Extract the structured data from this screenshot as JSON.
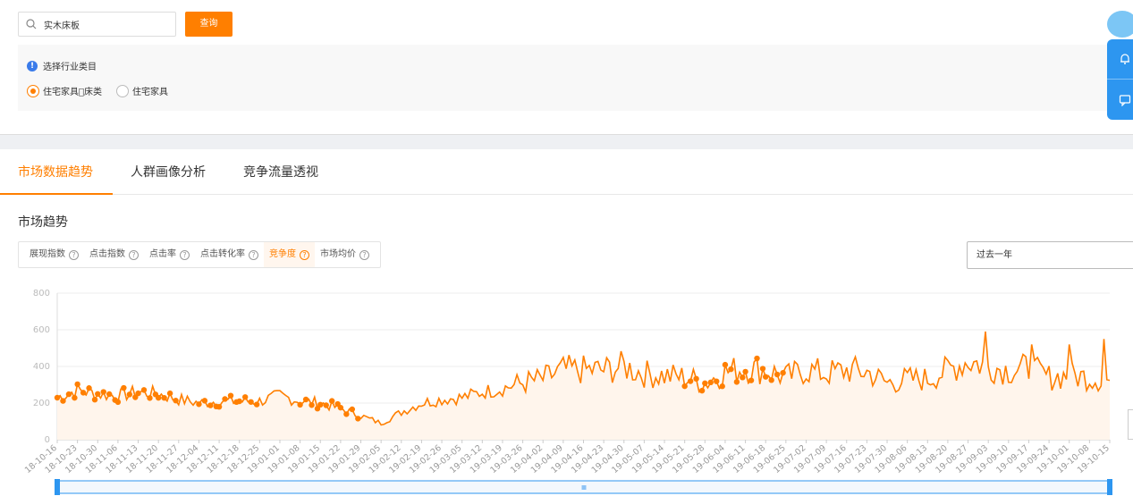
{
  "search": {
    "value": "实木床板",
    "button_label": "查询"
  },
  "industry": {
    "hint": "选择行业类目",
    "options": [
      {
        "label": "住宅家具\u0000床类",
        "selected": true
      },
      {
        "label": "住宅家具",
        "selected": false
      }
    ]
  },
  "tabs": [
    {
      "label": "市场数据趋势",
      "active": true
    },
    {
      "label": "人群画像分析",
      "active": false
    },
    {
      "label": "竞争流量透视",
      "active": false
    }
  ],
  "section_title": "市场趋势",
  "metrics": [
    {
      "label": "展现指数",
      "active": false
    },
    {
      "label": "点击指数",
      "active": false
    },
    {
      "label": "点击率",
      "active": false
    },
    {
      "label": "点击转化率",
      "active": false
    },
    {
      "label": "竞争度",
      "active": true
    },
    {
      "label": "市场均价",
      "active": false
    }
  ],
  "range_select": {
    "value": "过去一年"
  },
  "colors": {
    "accent": "#ff7f00",
    "blue": "#2d96f0"
  },
  "icons": {
    "search": "search-icon",
    "bell": "bell-icon",
    "chat": "chat-icon",
    "info": "info-icon",
    "help": "question-icon"
  },
  "chart_data": {
    "type": "line",
    "ylim": [
      0,
      800
    ],
    "yticks": [
      0,
      200,
      400,
      600,
      800
    ],
    "x_ticks": [
      "18-10-16",
      "18-10-23",
      "18-10-30",
      "18-11-06",
      "18-11-13",
      "18-11-20",
      "18-11-27",
      "18-12-04",
      "18-12-11",
      "18-12-18",
      "18-12-25",
      "19-01-01",
      "19-01-08",
      "19-01-15",
      "19-01-22",
      "19-01-29",
      "19-02-05",
      "19-02-12",
      "19-02-19",
      "19-02-26",
      "19-03-05",
      "19-03-12",
      "19-03-19",
      "19-03-26",
      "19-04-02",
      "19-04-09",
      "19-04-16",
      "19-04-23",
      "19-04-30",
      "19-05-07",
      "19-05-14",
      "19-05-21",
      "19-05-28",
      "19-06-04",
      "19-06-11",
      "19-06-18",
      "19-06-25",
      "19-07-02",
      "19-07-09",
      "19-07-16",
      "19-07-23",
      "19-07-30",
      "19-08-06",
      "19-08-13",
      "19-08-20",
      "19-08-27",
      "19-09-03",
      "19-09-10",
      "19-09-17",
      "19-09-24",
      "19-10-01",
      "19-10-08",
      "19-10-15"
    ],
    "weekly_values": [
      230,
      270,
      250,
      240,
      260,
      250,
      220,
      200,
      210,
      210,
      210,
      240,
      210,
      200,
      170,
      130,
      90,
      150,
      200,
      220,
      230,
      260,
      280,
      310,
      330,
      380,
      380,
      380,
      400,
      360,
      350,
      340,
      310,
      370,
      390,
      380,
      340,
      380,
      360,
      380,
      370,
      310,
      330,
      330,
      380,
      430,
      400,
      380,
      390,
      340,
      350,
      340,
      320
    ],
    "highlighted_weeks": [
      0,
      1,
      2,
      3,
      4,
      5,
      7,
      8,
      9,
      12,
      13,
      14,
      31,
      32,
      33,
      34,
      35
    ],
    "grid": true,
    "legend": "none"
  }
}
